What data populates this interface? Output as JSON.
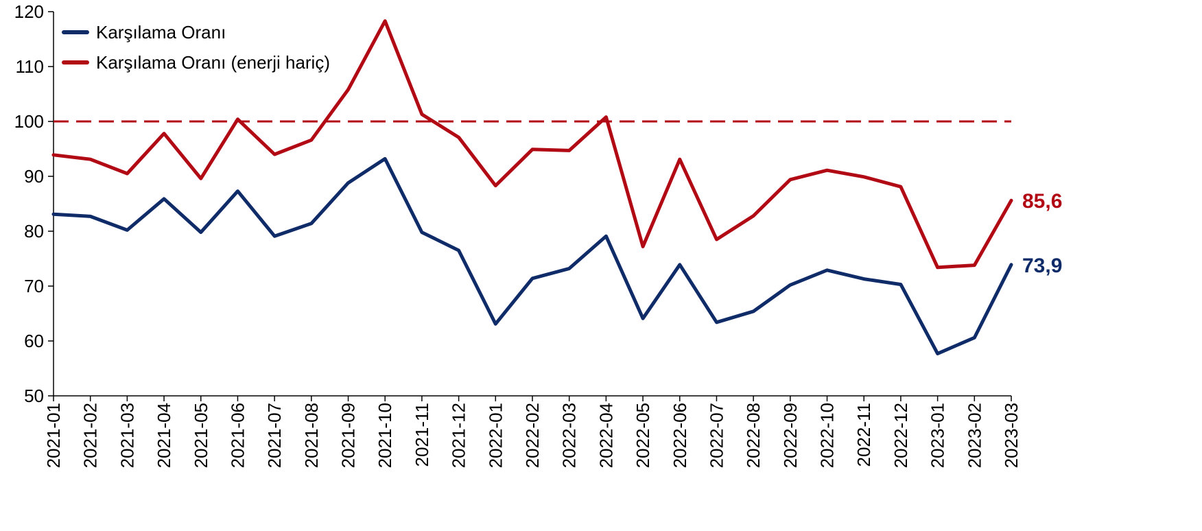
{
  "chart_data": {
    "type": "line",
    "title": "",
    "xlabel": "",
    "ylabel": "",
    "ylim": [
      50,
      120
    ],
    "yticks": [
      50,
      60,
      70,
      80,
      90,
      100,
      110,
      120
    ],
    "grid": false,
    "legend_position": "top-left",
    "reference_line": {
      "value": 100,
      "style": "dashed",
      "color": "#b10a14"
    },
    "categories": [
      "2021-01",
      "2021-02",
      "2021-03",
      "2021-04",
      "2021-05",
      "2021-06",
      "2021-07",
      "2021-08",
      "2021-09",
      "2021-10",
      "2021-11",
      "2021-12",
      "2022-01",
      "2022-02",
      "2022-03",
      "2022-04",
      "2022-05",
      "2022-06",
      "2022-07",
      "2022-08",
      "2022-09",
      "2022-10",
      "2022-11",
      "2022-12",
      "2023-01",
      "2023-02",
      "2023-03"
    ],
    "series": [
      {
        "name": "Karşılama Oranı",
        "color": "#0f2c69",
        "values": [
          83.1,
          82.7,
          80.2,
          85.9,
          79.8,
          87.3,
          79.1,
          81.4,
          88.8,
          93.2,
          79.8,
          76.5,
          63.1,
          71.4,
          73.2,
          79.1,
          64.1,
          73.9,
          63.4,
          65.4,
          70.2,
          72.9,
          71.3,
          70.3,
          57.7,
          60.6,
          73.9
        ],
        "end_label": "73,9"
      },
      {
        "name": "Karşılama Oranı (enerji hariç)",
        "color": "#b10a14",
        "values": [
          93.9,
          93.1,
          90.5,
          97.8,
          89.6,
          100.4,
          94.0,
          96.6,
          105.8,
          118.3,
          101.3,
          97.1,
          88.3,
          94.9,
          94.7,
          100.8,
          77.2,
          93.1,
          78.5,
          82.8,
          89.4,
          91.1,
          89.9,
          88.1,
          73.4,
          73.8,
          85.6
        ],
        "end_label": "85,6"
      }
    ]
  }
}
